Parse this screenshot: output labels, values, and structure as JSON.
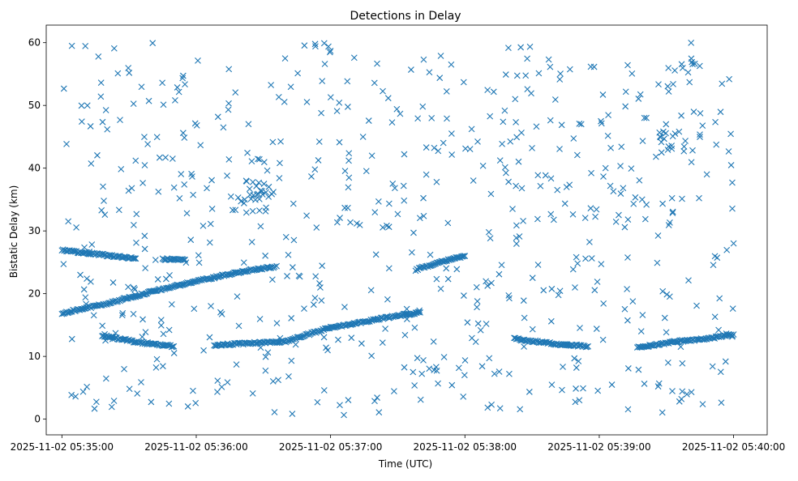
{
  "chart_data": {
    "type": "scatter",
    "title": "Detections in Delay",
    "xlabel": "Time (UTC)",
    "ylabel": "Bistatic Delay (km)",
    "marker": "x",
    "color": "#1f77b4",
    "grid": false,
    "xlim": [
      "2025-11-02 05:34:53",
      "2025-11-02 05:40:15"
    ],
    "ylim": [
      -2.5,
      62.8
    ],
    "x_ticks": [
      "2025-11-02 05:35:00",
      "2025-11-02 05:36:00",
      "2025-11-02 05:37:00",
      "2025-11-02 05:38:00",
      "2025-11-02 05:39:00",
      "2025-11-02 05:40:00"
    ],
    "y_ticks": [
      0,
      10,
      20,
      30,
      40,
      50,
      60
    ],
    "tracks": [
      {
        "points": [
          [
            "2025-11-02 05:35:00",
            26.9
          ],
          [
            "2025-11-02 05:35:15",
            26.3
          ],
          [
            "2025-11-02 05:35:33",
            25.6
          ]
        ]
      },
      {
        "points": [
          [
            "2025-11-02 05:35:45",
            25.5
          ],
          [
            "2025-11-02 05:35:55",
            25.4
          ]
        ]
      },
      {
        "points": [
          [
            "2025-11-02 05:35:00",
            16.9
          ],
          [
            "2025-11-02 05:35:20",
            18.4
          ],
          [
            "2025-11-02 05:35:40",
            20.3
          ],
          [
            "2025-11-02 05:36:00",
            22.0
          ],
          [
            "2025-11-02 05:36:20",
            23.5
          ],
          [
            "2025-11-02 05:36:35",
            24.3
          ]
        ]
      },
      {
        "points": [
          [
            "2025-11-02 05:35:18",
            13.3
          ],
          [
            "2025-11-02 05:35:35",
            12.2
          ],
          [
            "2025-11-02 05:35:50",
            11.6
          ]
        ]
      },
      {
        "points": [
          [
            "2025-11-02 05:36:08",
            11.8
          ],
          [
            "2025-11-02 05:36:40",
            12.4
          ],
          [
            "2025-11-02 05:37:00",
            14.6
          ],
          [
            "2025-11-02 05:37:30",
            16.5
          ],
          [
            "2025-11-02 05:37:40",
            17.0
          ]
        ]
      },
      {
        "points": [
          [
            "2025-11-02 05:37:38",
            23.8
          ],
          [
            "2025-11-02 05:37:50",
            25.2
          ],
          [
            "2025-11-02 05:38:00",
            26.0
          ]
        ]
      },
      {
        "points": [
          [
            "2025-11-02 05:38:22",
            12.8
          ],
          [
            "2025-11-02 05:38:40",
            12.0
          ],
          [
            "2025-11-02 05:38:55",
            11.6
          ]
        ]
      },
      {
        "points": [
          [
            "2025-11-02 05:39:17",
            11.4
          ],
          [
            "2025-11-02 05:39:35",
            12.4
          ],
          [
            "2025-11-02 05:39:50",
            12.9
          ],
          [
            "2025-11-02 05:40:00",
            13.5
          ]
        ]
      },
      {
        "points": [
          [
            "2025-11-02 05:40:00",
            28.0
          ]
        ]
      }
    ],
    "clusters": [
      {
        "time": "2025-11-02 05:36:25",
        "delay_range": [
          33,
          38
        ],
        "count": 30
      },
      {
        "time": "2025-11-02 05:39:35",
        "delay_range": [
          42,
          46
        ],
        "count": 20
      },
      {
        "time": "2025-11-02 05:39:35",
        "delay_range": [
          53,
          57
        ],
        "count": 12
      }
    ],
    "noise_count": 620,
    "noise_delay_range": [
      0.5,
      60
    ]
  }
}
